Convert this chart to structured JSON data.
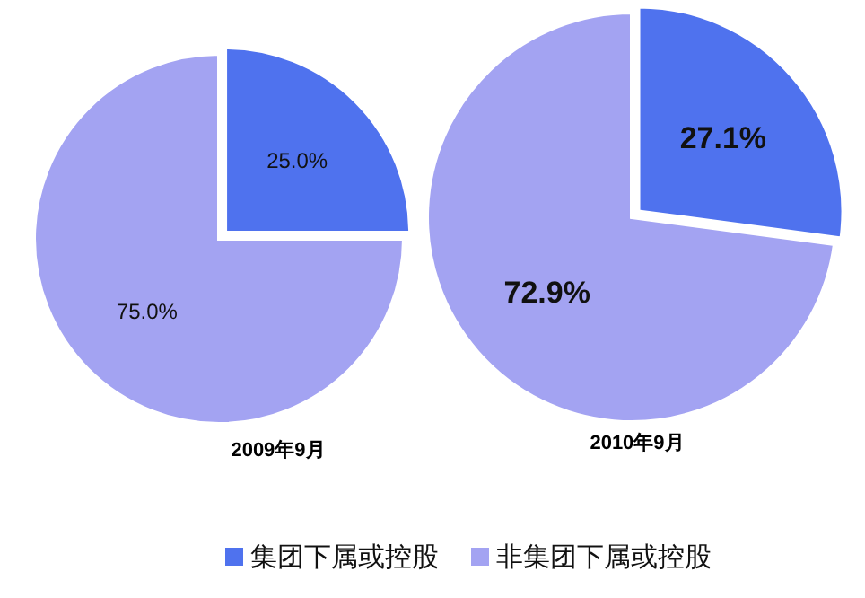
{
  "chart_data": [
    {
      "type": "pie",
      "title": "2009年9月",
      "categories": [
        "集团下属或控股",
        "非集团下属或控股"
      ],
      "values": [
        25.0,
        75.0
      ],
      "value_labels": [
        "25.0%",
        "75.0%"
      ],
      "colors": [
        "#4f72ee",
        "#a3a3f2"
      ],
      "legend": "bottom"
    },
    {
      "type": "pie",
      "title": "2010年9月",
      "values": [
        27.1,
        72.9
      ],
      "value_labels": [
        "27.1%",
        "72.9%"
      ],
      "colors": [
        "#4f72ee",
        "#a3a3f2"
      ]
    }
  ]
}
